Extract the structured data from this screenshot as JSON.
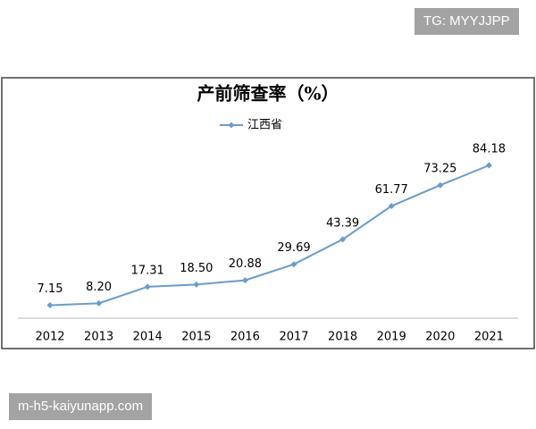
{
  "watermarks": {
    "top": "TG: MYYJJPP",
    "bottom": "m-h5-kaiyunapp.com"
  },
  "chart_data": {
    "type": "line",
    "title": "产前筛查率（%）",
    "categories": [
      "2012",
      "2013",
      "2014",
      "2015",
      "2016",
      "2017",
      "2018",
      "2019",
      "2020",
      "2021"
    ],
    "series": [
      {
        "name": "江西省",
        "color": "#6b9ccb",
        "values": [
          7.15,
          8.2,
          17.31,
          18.5,
          20.88,
          29.69,
          43.39,
          61.77,
          73.25,
          84.18
        ],
        "value_labels": [
          "7.15",
          "8.20",
          "17.31",
          "18.50",
          "20.88",
          "29.69",
          "43.39",
          "61.77",
          "73.25",
          "84.18"
        ]
      }
    ]
  }
}
